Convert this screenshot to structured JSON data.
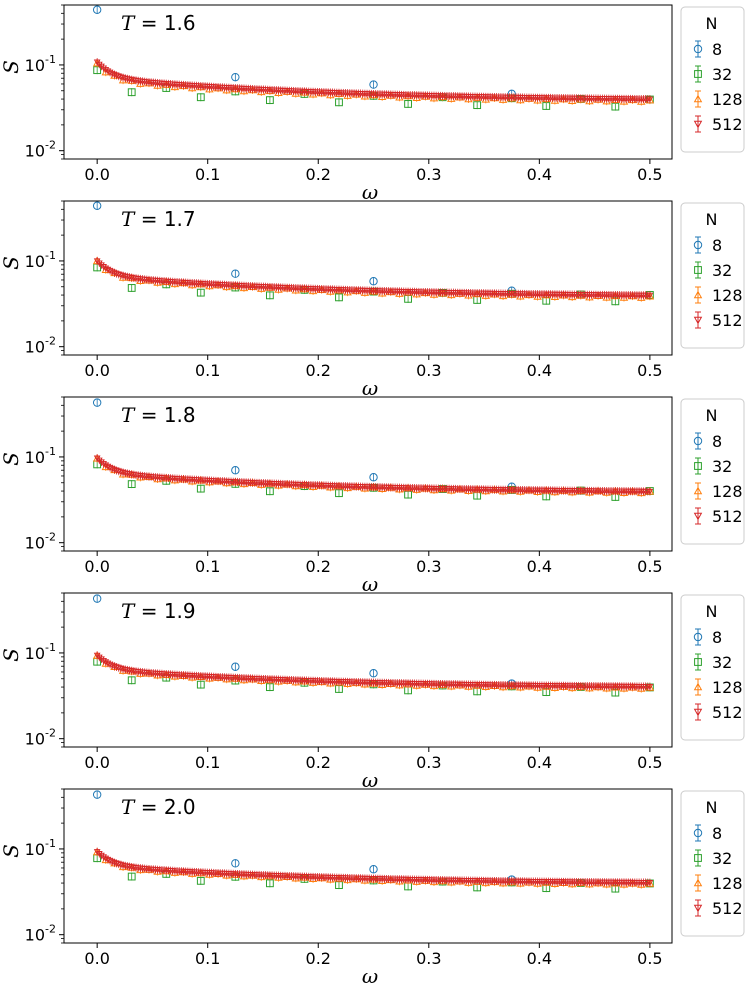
{
  "figure": {
    "xlabel": "ω",
    "ylabel": "S",
    "legend_title": "N"
  },
  "chart_data": [
    {
      "type": "scatter",
      "annotation": "T = 1.6",
      "xlabel": "ω",
      "ylabel": "S",
      "xlim": [
        -0.03,
        0.52
      ],
      "ylim": [
        0.008,
        0.5
      ],
      "yscale": "log",
      "xticks": [
        "0.0",
        "0.1",
        "0.2",
        "0.3",
        "0.4",
        "0.5"
      ],
      "legend_title": "N",
      "legend_position": "outside-right",
      "series": [
        {
          "name": "8",
          "marker": "circle",
          "x": [
            0.0,
            0.125,
            0.25,
            0.375
          ],
          "y": [
            0.44,
            0.072,
            0.059,
            0.046
          ]
        },
        {
          "name": "32",
          "marker": "square",
          "x_start": 0.0,
          "x_step": 0.03125,
          "y_start": 0.082,
          "y_end": 0.036,
          "count": 17,
          "pattern_low": 0.87,
          "pattern_high": 1.06
        },
        {
          "name": "128",
          "marker": "triangle-up",
          "x_start": 0.0,
          "x_step": 0.0078125,
          "y_start": 0.105,
          "y_end": 0.037,
          "count": 65,
          "pattern_low": 0.96,
          "pattern_high": 1.0
        },
        {
          "name": "512",
          "marker": "triangle-down",
          "x_start": 0.0,
          "x_step": 0.001953125,
          "y_start": 0.108,
          "y_end": 0.038,
          "count": 257
        }
      ]
    },
    {
      "type": "scatter",
      "annotation": "T = 1.7",
      "xlabel": "ω",
      "ylabel": "S",
      "xlim": [
        -0.03,
        0.52
      ],
      "ylim": [
        0.008,
        0.5
      ],
      "yscale": "log",
      "xticks": [
        "0.0",
        "0.1",
        "0.2",
        "0.3",
        "0.4",
        "0.5"
      ],
      "legend_title": "N",
      "legend_position": "outside-right",
      "series": [
        {
          "name": "8",
          "marker": "circle",
          "x": [
            0.0,
            0.125,
            0.25,
            0.375
          ],
          "y": [
            0.44,
            0.071,
            0.058,
            0.045
          ]
        },
        {
          "name": "32",
          "marker": "square",
          "x_start": 0.0,
          "x_step": 0.03125,
          "y_start": 0.08,
          "y_end": 0.037,
          "count": 17,
          "pattern_low": 0.88,
          "pattern_high": 1.05
        },
        {
          "name": "128",
          "marker": "triangle-up",
          "x_start": 0.0,
          "x_step": 0.0078125,
          "y_start": 0.1,
          "y_end": 0.037,
          "count": 65,
          "pattern_low": 0.96,
          "pattern_high": 1.0
        },
        {
          "name": "512",
          "marker": "triangle-down",
          "x_start": 0.0,
          "x_step": 0.001953125,
          "y_start": 0.1,
          "y_end": 0.038,
          "count": 257
        }
      ]
    },
    {
      "type": "scatter",
      "annotation": "T = 1.8",
      "xlabel": "ω",
      "ylabel": "S",
      "xlim": [
        -0.03,
        0.52
      ],
      "ylim": [
        0.008,
        0.5
      ],
      "yscale": "log",
      "xticks": [
        "0.0",
        "0.1",
        "0.2",
        "0.3",
        "0.4",
        "0.5"
      ],
      "legend_title": "N",
      "legend_position": "outside-right",
      "series": [
        {
          "name": "8",
          "marker": "circle",
          "x": [
            0.0,
            0.125,
            0.25,
            0.375
          ],
          "y": [
            0.43,
            0.07,
            0.058,
            0.045
          ]
        },
        {
          "name": "32",
          "marker": "square",
          "x_start": 0.0,
          "x_step": 0.03125,
          "y_start": 0.078,
          "y_end": 0.037,
          "count": 17,
          "pattern_low": 0.89,
          "pattern_high": 1.05
        },
        {
          "name": "128",
          "marker": "triangle-up",
          "x_start": 0.0,
          "x_step": 0.0078125,
          "y_start": 0.096,
          "y_end": 0.038,
          "count": 65,
          "pattern_low": 0.96,
          "pattern_high": 1.0
        },
        {
          "name": "512",
          "marker": "triangle-down",
          "x_start": 0.0,
          "x_step": 0.001953125,
          "y_start": 0.097,
          "y_end": 0.038,
          "count": 257
        }
      ]
    },
    {
      "type": "scatter",
      "annotation": "T = 1.9",
      "xlabel": "ω",
      "ylabel": "S",
      "xlim": [
        -0.03,
        0.52
      ],
      "ylim": [
        0.008,
        0.5
      ],
      "yscale": "log",
      "xticks": [
        "0.0",
        "0.1",
        "0.2",
        "0.3",
        "0.4",
        "0.5"
      ],
      "legend_title": "N",
      "legend_position": "outside-right",
      "series": [
        {
          "name": "8",
          "marker": "circle",
          "x": [
            0.0,
            0.125,
            0.25,
            0.375
          ],
          "y": [
            0.43,
            0.069,
            0.058,
            0.044
          ]
        },
        {
          "name": "32",
          "marker": "square",
          "x_start": 0.0,
          "x_step": 0.03125,
          "y_start": 0.076,
          "y_end": 0.037,
          "count": 17,
          "pattern_low": 0.9,
          "pattern_high": 1.04
        },
        {
          "name": "128",
          "marker": "triangle-up",
          "x_start": 0.0,
          "x_step": 0.0078125,
          "y_start": 0.093,
          "y_end": 0.038,
          "count": 65,
          "pattern_low": 0.97,
          "pattern_high": 1.0
        },
        {
          "name": "512",
          "marker": "triangle-down",
          "x_start": 0.0,
          "x_step": 0.001953125,
          "y_start": 0.094,
          "y_end": 0.039,
          "count": 257
        }
      ]
    },
    {
      "type": "scatter",
      "annotation": "T = 2.0",
      "xlabel": "ω",
      "ylabel": "S",
      "xlim": [
        -0.03,
        0.52
      ],
      "ylim": [
        0.008,
        0.5
      ],
      "yscale": "log",
      "xticks": [
        "0.0",
        "0.1",
        "0.2",
        "0.3",
        "0.4",
        "0.5"
      ],
      "legend_title": "N",
      "legend_position": "outside-right",
      "series": [
        {
          "name": "8",
          "marker": "circle",
          "x": [
            0.0,
            0.125,
            0.25,
            0.375
          ],
          "y": [
            0.43,
            0.068,
            0.058,
            0.044
          ]
        },
        {
          "name": "32",
          "marker": "square",
          "x_start": 0.0,
          "x_step": 0.03125,
          "y_start": 0.075,
          "y_end": 0.037,
          "count": 17,
          "pattern_low": 0.9,
          "pattern_high": 1.04
        },
        {
          "name": "128",
          "marker": "triangle-up",
          "x_start": 0.0,
          "x_step": 0.0078125,
          "y_start": 0.092,
          "y_end": 0.038,
          "count": 65,
          "pattern_low": 0.97,
          "pattern_high": 1.0
        },
        {
          "name": "512",
          "marker": "triangle-down",
          "x_start": 0.0,
          "x_step": 0.001953125,
          "y_start": 0.093,
          "y_end": 0.039,
          "count": 257
        }
      ]
    }
  ],
  "colors": {
    "8": "#1f77b4",
    "32": "#2ca02c",
    "128": "#ff7f0e",
    "512": "#d62728"
  }
}
